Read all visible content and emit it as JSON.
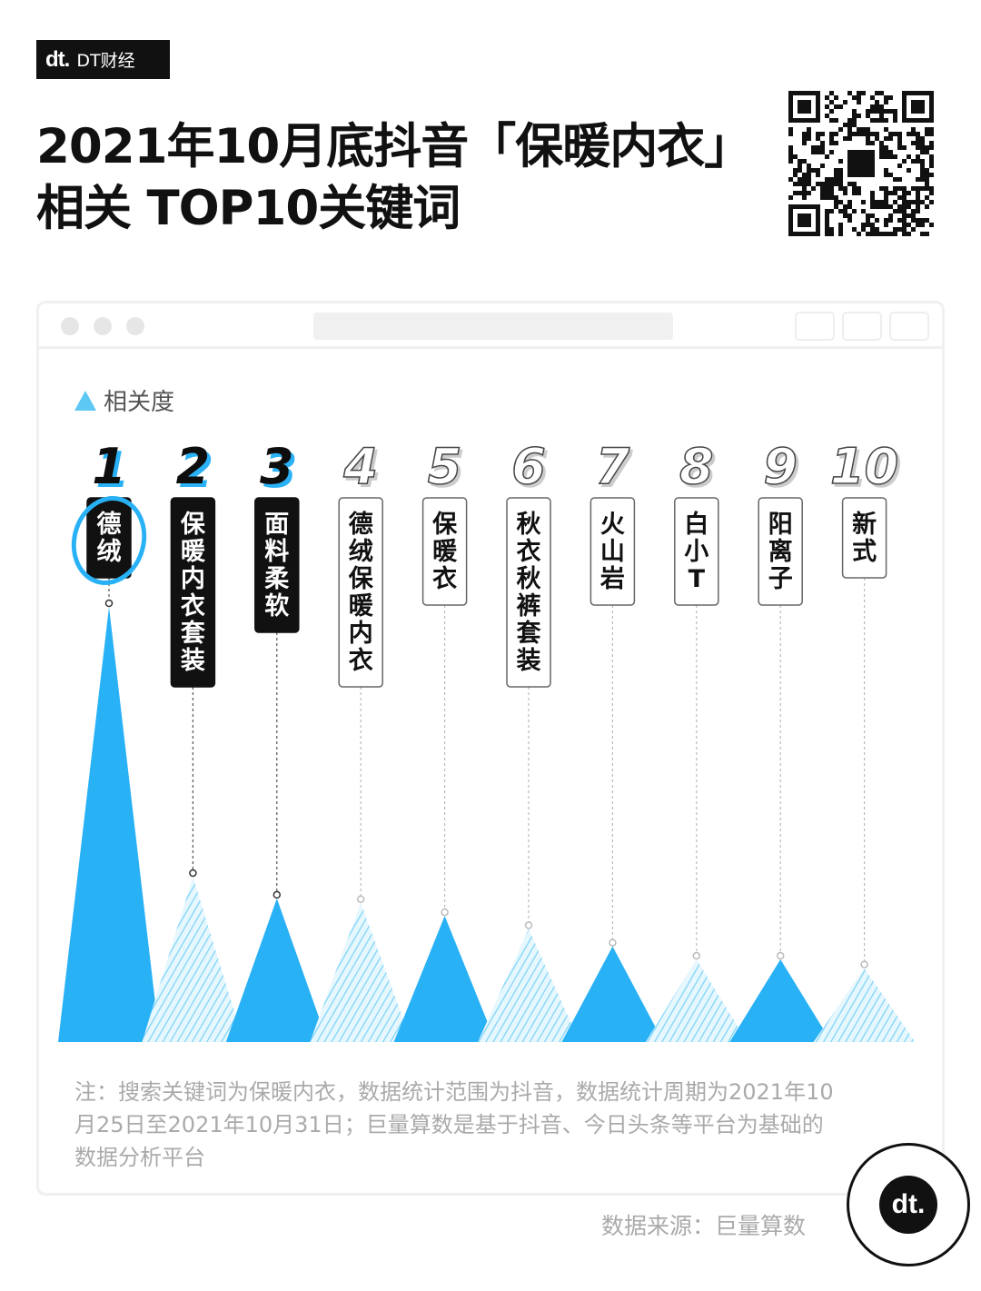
{
  "brand": {
    "logo": "dt.",
    "name": "DT财经"
  },
  "title": {
    "line1": "2021年10月底抖音「保暖内衣」",
    "line2": "相关 TOP10关键词"
  },
  "legend": {
    "label": "相关度",
    "color": "#5ec8f5"
  },
  "colors": {
    "accent": "#29b1f6",
    "hatch": "#7fd3f7",
    "dark": "#111111"
  },
  "chart_data": {
    "type": "bar",
    "title": "",
    "ylabel": "相关度",
    "note": "relative heights only; no axis printed",
    "categories": [
      "德绒",
      "保暖内衣套装",
      "面料柔软",
      "德绒保暖内衣",
      "保暖衣",
      "秋衣秋裤套装",
      "火山岩",
      "白小T",
      "阳离子",
      "新式"
    ],
    "ranks": [
      "1",
      "2",
      "3",
      "4",
      "5",
      "6",
      "7",
      "8",
      "9",
      "10"
    ],
    "values": [
      100,
      38,
      33,
      32,
      29,
      26,
      22,
      19,
      19,
      17
    ],
    "ylim": [
      0,
      100
    ],
    "grid": false
  },
  "footer": {
    "note": "注：搜索关键词为保暖内衣，数据统计范围为抖音，数据统计周期为2021年10月25日至2021年10月31日；巨量算数是基于抖音、今日头条等平台为基础的数据分析平台",
    "source": "数据来源：巨量算数",
    "badge_logo": "dt."
  }
}
